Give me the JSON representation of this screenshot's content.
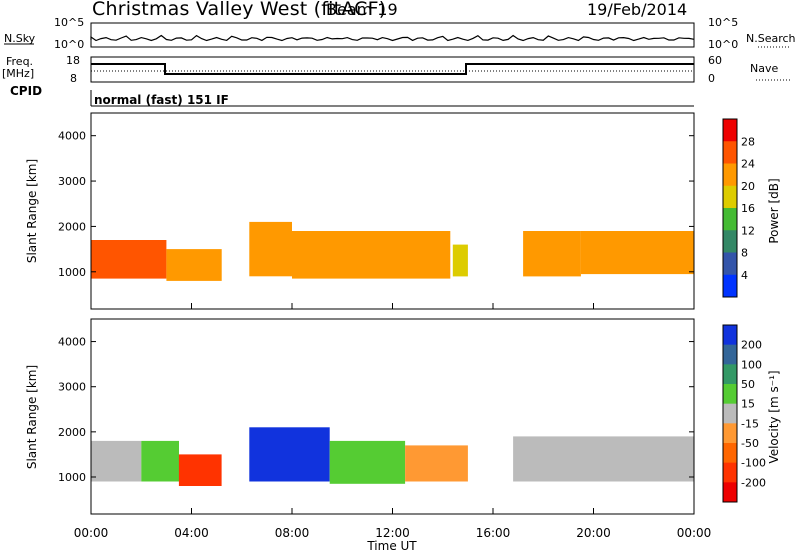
{
  "header": {
    "title": "Christmas Valley West (fitACF)",
    "beam": "Beam 19",
    "date": "19/Feb/2014"
  },
  "left_labels": {
    "nsky": "N.Sky",
    "freq": "Freq.",
    "freq_unit": "[MHz]",
    "cpid": "CPID"
  },
  "right_labels": {
    "nsearch": "N.Search",
    "nave": "Nave"
  },
  "panel_ticks": {
    "noise_left": [
      "10^5",
      "10^0"
    ],
    "noise_right": [
      "10^5",
      "10^0"
    ],
    "freq_left": [
      "18",
      "8"
    ],
    "freq_right": [
      "60",
      "0"
    ]
  },
  "cpid_text": "normal (fast) 151 IF",
  "colors": {
    "power_scale": [
      "#0033ff",
      "#3355aa",
      "#338866",
      "#44bb33",
      "#ddcc00",
      "#ff9900",
      "#ff5500",
      "#ee0000"
    ],
    "velocity_scale": [
      "#1133dd",
      "#336699",
      "#339966",
      "#55cc33",
      "#bbbbbb",
      "#ff9933",
      "#ff6600",
      "#ff3300",
      "#ee0000"
    ]
  },
  "chart_data": [
    {
      "type": "heatmap",
      "name": "power",
      "xlabel": "Time UT",
      "ylabel": "Slant Range [km]",
      "x_ticks": [
        "00:00",
        "04:00",
        "08:00",
        "12:00",
        "16:00",
        "20:00",
        "00:00"
      ],
      "y_ticks": [
        "1000",
        "2000",
        "3000",
        "4000"
      ],
      "xlim": [
        0,
        24
      ],
      "ylim": [
        180,
        4500
      ],
      "colorbar_label": "Power [dB]",
      "colorbar_ticks": [
        "4",
        "8",
        "12",
        "16",
        "20",
        "24",
        "28"
      ],
      "colorbar_range": [
        0,
        32
      ],
      "echo_bands": [
        {
          "t0": 0.0,
          "t1": 3.0,
          "r0": 850,
          "r1": 1700,
          "level": 24
        },
        {
          "t0": 3.0,
          "t1": 5.2,
          "r0": 800,
          "r1": 1500,
          "level": 22
        },
        {
          "t0": 6.3,
          "t1": 8.0,
          "r0": 900,
          "r1": 2100,
          "level": 20
        },
        {
          "t0": 8.0,
          "t1": 14.3,
          "r0": 850,
          "r1": 1900,
          "level": 22
        },
        {
          "t0": 14.4,
          "t1": 15.0,
          "r0": 900,
          "r1": 1600,
          "level": 18
        },
        {
          "t0": 17.2,
          "t1": 19.5,
          "r0": 900,
          "r1": 1900,
          "level": 22
        },
        {
          "t0": 19.5,
          "t1": 24.0,
          "r0": 950,
          "r1": 1900,
          "level": 20
        }
      ]
    },
    {
      "type": "heatmap",
      "name": "velocity",
      "xlabel": "Time UT",
      "ylabel": "Slant Range [km]",
      "x_ticks": [
        "00:00",
        "04:00",
        "08:00",
        "12:00",
        "16:00",
        "20:00",
        "00:00"
      ],
      "y_ticks": [
        "1000",
        "2000",
        "3000",
        "4000"
      ],
      "xlim": [
        0,
        24
      ],
      "ylim": [
        180,
        4500
      ],
      "colorbar_label": "Velocity [m s⁻¹]",
      "colorbar_ticks": [
        "200",
        "100",
        "50",
        "15",
        "-15",
        "-50",
        "-100",
        "-200"
      ],
      "colorbar_range": [
        -250,
        250
      ],
      "echo_bands": [
        {
          "t0": 0.0,
          "t1": 2.0,
          "r0": 900,
          "r1": 1800,
          "level": 0
        },
        {
          "t0": 2.0,
          "t1": 3.5,
          "r0": 900,
          "r1": 1800,
          "level": 30
        },
        {
          "t0": 3.5,
          "t1": 5.2,
          "r0": 800,
          "r1": 1500,
          "level": -150
        },
        {
          "t0": 6.3,
          "t1": 9.5,
          "r0": 900,
          "r1": 2100,
          "level": 220
        },
        {
          "t0": 9.5,
          "t1": 12.5,
          "r0": 850,
          "r1": 1800,
          "level": 60
        },
        {
          "t0": 12.5,
          "t1": 15.0,
          "r0": 900,
          "r1": 1700,
          "level": -70
        },
        {
          "t0": 16.8,
          "t1": 24.0,
          "r0": 900,
          "r1": 1900,
          "level": 0
        }
      ]
    }
  ]
}
